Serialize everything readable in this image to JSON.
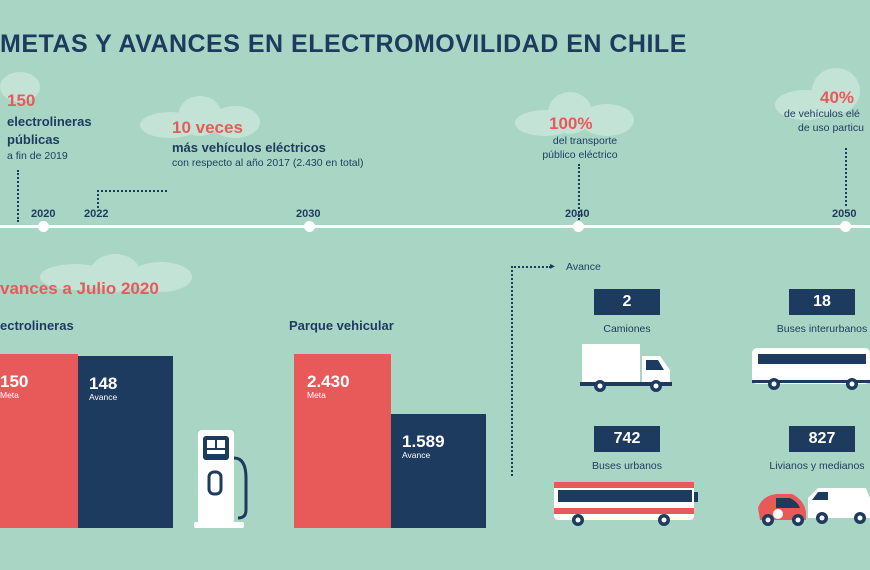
{
  "title": "METAS Y AVANCES EN ELECTROMOVILIDAD EN CHILE",
  "timeline": {
    "years": [
      "2020",
      "2022",
      "2030",
      "2040",
      "2050"
    ],
    "goal_150": {
      "value": "150",
      "line1": "electrolineras",
      "line2": "públicas",
      "note": "a fin de 2019"
    },
    "goal_10x": {
      "value": "10 veces",
      "line1": "más vehículos eléctricos",
      "note": "con respecto al año 2017 (2.430 en total)"
    },
    "goal_100": {
      "value": "100%",
      "line1": "del transporte",
      "line2": "público eléctrico"
    },
    "goal_40": {
      "value": "40%",
      "line1": "de vehículos elé",
      "line2": "de uso particu"
    }
  },
  "avances": {
    "heading": "vances a Julio 2020",
    "electrolineras": {
      "label": "ectrolineras",
      "meta_value": "150",
      "meta_label": "Meta",
      "avance_value": "148",
      "avance_label": "Avance"
    },
    "parque": {
      "label": "Parque vehicular",
      "meta_value": "2.430",
      "meta_label": "Meta",
      "avance_value": "1.589",
      "avance_label": "Avance"
    },
    "avance_arrow_label": "Avance",
    "vehicles": [
      {
        "count": "2",
        "label": "Camiones"
      },
      {
        "count": "18",
        "label": "Buses interurbanos"
      },
      {
        "count": "742",
        "label": "Buses urbanos"
      },
      {
        "count": "827",
        "label": "Livianos y medianos"
      }
    ]
  },
  "colors": {
    "background": "#a9d6c4",
    "navy": "#1d3a5f",
    "red": "#e85a5a"
  }
}
